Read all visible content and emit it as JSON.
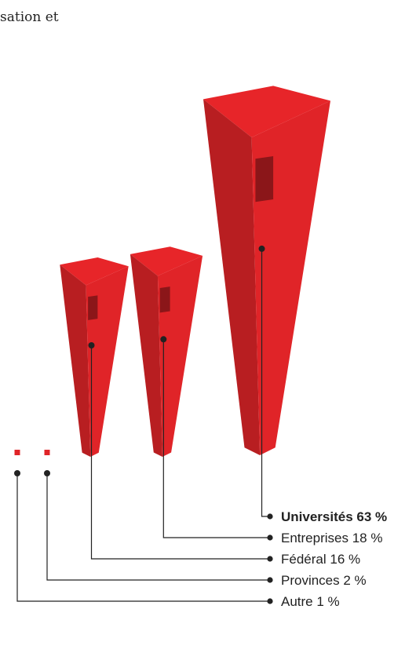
{
  "intro_text": "sation et",
  "chart_data": {
    "type": "pictogram",
    "unit": "%",
    "categories": [
      "Universités",
      "Entreprises",
      "Fédéral",
      "Provinces",
      "Autre"
    ],
    "values": [
      63,
      18,
      16,
      2,
      1
    ],
    "labels": [
      "Universités 63 %",
      "Entreprises 18 %",
      "Fédéral 16 %",
      "Provinces 2 %",
      "Autre 1 %"
    ],
    "highlight": "Universités",
    "color": "#e02428",
    "leader_color": "#222222"
  }
}
